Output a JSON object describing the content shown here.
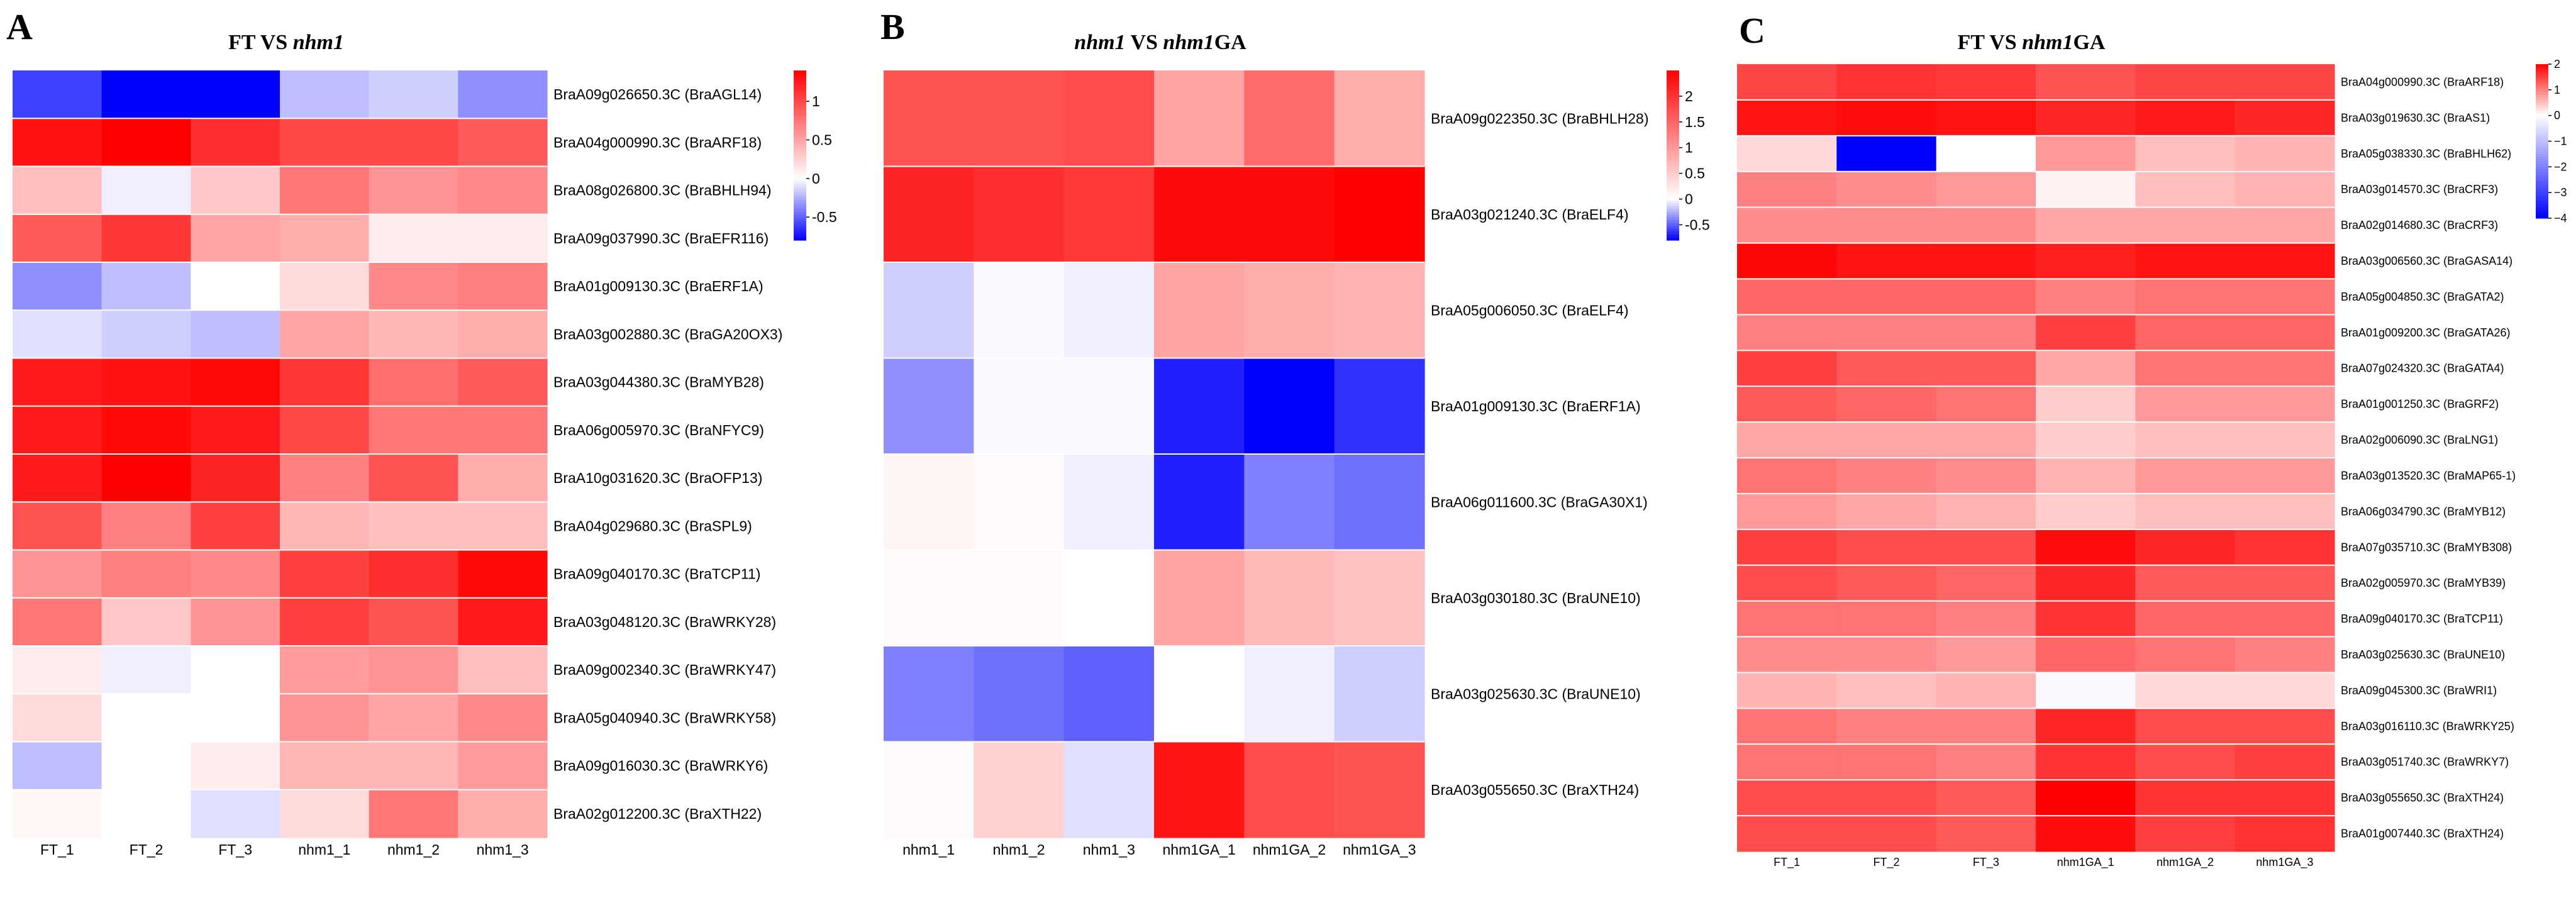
{
  "chart_data": [
    {
      "type": "heatmap",
      "panel_letter": "A",
      "title_prefix": "FT VS ",
      "title_italic": "nhm1",
      "title_suffix": "",
      "columns": [
        "FT_1",
        "FT_2",
        "FT_3",
        "nhm1_1",
        "nhm1_2",
        "nhm1_3"
      ],
      "rows": [
        "BraA09g026650.3C (BraAGL14)",
        "BraA04g000990.3C (BraARF18)",
        "BraA08g026800.3C (BraBHLH94)",
        "BraA09g037990.3C (BraEFR116)",
        "BraA01g009130.3C (BraERF1A)",
        "BraA03g002880.3C (BraGA20OX3)",
        "BraA03g044380.3C (BraMYB28)",
        "BraA06g005970.3C (BraNFYC9)",
        "BraA10g031620.3C (BraOFP13)",
        "BraA04g029680.3C (BraSPL9)",
        "BraA09g040170.3C (BraTCP11)",
        "BraA03g048120.3C (BraWRKY28)",
        "BraA09g002340.3C (BraWRKY47)",
        "BraA05g040940.3C (BraWRKY58)",
        "BraA09g016030.3C (BraWRKY6)",
        "BraA02g012200.3C (BraXTH22)"
      ],
      "values": [
        [
          -0.6,
          -0.8,
          -0.8,
          -0.2,
          -0.15,
          -0.35
        ],
        [
          1.3,
          1.45,
          1.15,
          1.0,
          1.0,
          0.9
        ],
        [
          0.35,
          -0.05,
          0.3,
          0.75,
          0.6,
          0.65
        ],
        [
          0.9,
          1.1,
          0.5,
          0.45,
          0.1,
          0.1
        ],
        [
          -0.35,
          -0.2,
          0.0,
          0.2,
          0.65,
          0.7
        ],
        [
          -0.1,
          -0.15,
          -0.2,
          0.5,
          0.4,
          0.45
        ],
        [
          1.25,
          1.3,
          1.35,
          1.1,
          0.8,
          0.9
        ],
        [
          1.25,
          1.35,
          1.25,
          1.0,
          0.75,
          0.75
        ],
        [
          1.25,
          1.4,
          1.2,
          0.7,
          0.95,
          0.45
        ],
        [
          0.95,
          0.7,
          1.05,
          0.4,
          0.35,
          0.35
        ],
        [
          0.6,
          0.7,
          0.65,
          1.05,
          1.15,
          1.35
        ],
        [
          0.75,
          0.3,
          0.6,
          1.05,
          0.95,
          1.25
        ],
        [
          0.1,
          -0.05,
          0.0,
          0.55,
          0.6,
          0.35
        ],
        [
          0.2,
          0.0,
          0.0,
          0.6,
          0.5,
          0.65
        ],
        [
          -0.2,
          0.0,
          0.1,
          0.4,
          0.4,
          0.55
        ],
        [
          0.05,
          0.0,
          -0.1,
          0.2,
          0.75,
          0.45
        ]
      ],
      "colorbar_ticks": [
        "1",
        "0.5",
        "0",
        "-0.5"
      ],
      "colorbar_tick_values": [
        1,
        0.5,
        0,
        -0.5
      ],
      "vmin": -0.8,
      "vmax": 1.4
    },
    {
      "type": "heatmap",
      "panel_letter": "B",
      "title_prefix": "",
      "title_italic": "nhm1",
      "title_suffix": " VS ",
      "title_italic2": "nhm1",
      "title_suffix2": "GA",
      "columns": [
        "nhm1_1",
        "nhm1_2",
        "nhm1_3",
        "nhm1GA_1",
        "nhm1GA_2",
        "nhm1GA_3"
      ],
      "rows": [
        "BraA09g022350.3C (BraBHLH28)",
        "BraA03g021240.3C (BraELF4)",
        "BraA05g006050.3C (BraELF4)",
        "BraA01g009130.3C (BraERF1A)",
        "BraA06g011600.3C (BraGA30X1)",
        "BraA03g030180.3C (BraUNE10)",
        "BraA03g025630.3C (BraUNE10)",
        "BraA03g055650.3C (BraXTH24)"
      ],
      "values": [
        [
          1.7,
          1.7,
          1.75,
          0.9,
          1.45,
          0.8
        ],
        [
          2.15,
          2.05,
          1.95,
          2.4,
          2.4,
          2.5
        ],
        [
          -0.15,
          -0.02,
          -0.05,
          0.9,
          0.8,
          0.75
        ],
        [
          -0.35,
          -0.02,
          -0.02,
          -0.7,
          -0.8,
          -0.65
        ],
        [
          0.1,
          0.05,
          -0.05,
          -0.7,
          -0.4,
          -0.45
        ],
        [
          0.05,
          0.05,
          0.0,
          0.9,
          0.7,
          0.6
        ],
        [
          -0.4,
          -0.45,
          -0.5,
          0.0,
          -0.05,
          -0.15
        ],
        [
          0.05,
          0.45,
          -0.1,
          2.3,
          1.75,
          1.7
        ]
      ],
      "colorbar_ticks": [
        "2",
        "1.5",
        "1",
        "0.5",
        "0",
        "-0.5"
      ],
      "colorbar_tick_values": [
        2,
        1.5,
        1,
        0.5,
        0,
        -0.5
      ],
      "vmin": -0.8,
      "vmax": 2.5
    },
    {
      "type": "heatmap",
      "panel_letter": "C",
      "title_prefix": "FT VS ",
      "title_italic": "nhm1",
      "title_suffix": "GA",
      "columns": [
        "FT_1",
        "FT_2",
        "FT_3",
        "nhm1GA_1",
        "nhm1GA_2",
        "nhm1GA_3"
      ],
      "rows": [
        "BraA04g000990.3C (BraARF18)",
        "BraA03g019630.3C (BraAS1)",
        "BraA05g038330.3C (BraBHLH62)",
        "BraA03g014570.3C (BraCRF3)",
        "BraA02g014680.3C (BraCRF3)",
        "BraA03g006560.3C (BraGASA14)",
        "BraA05g004850.3C (BraGATA2)",
        "BraA01g009200.3C (BraGATA26)",
        "BraA07g024320.3C (BraGATA4)",
        "BraA01g001250.3C (BraGRF2)",
        "BraA02g006090.3C (BraLNG1)",
        "BraA03g013520.3C (BraMAP65-1)",
        "BraA06g034790.3C (BraMYB12)",
        "BraA07g035710.3C (BraMYB308)",
        "BraA02g005970.3C (BraMYB39)",
        "BraA09g040170.3C (BraTCP11)",
        "BraA03g025630.3C (BraUNE10)",
        "BraA09g045300.3C (BraWRI1)",
        "BraA03g016110.3C (BraWRKY25)",
        "BraA03g051740.3C (BraWRKY7)",
        "BraA03g055650.3C (BraXTH24)",
        "BraA01g007440.3C (BraXTH24)"
      ],
      "values": [
        [
          1.45,
          1.6,
          1.55,
          1.35,
          1.45,
          1.45
        ],
        [
          1.85,
          1.9,
          1.85,
          1.7,
          1.8,
          1.7
        ],
        [
          0.3,
          -4.0,
          0.0,
          0.8,
          0.5,
          0.6
        ],
        [
          1.0,
          0.9,
          0.8,
          0.1,
          0.5,
          0.6
        ],
        [
          0.9,
          0.9,
          0.9,
          0.7,
          0.7,
          0.7
        ],
        [
          1.95,
          1.85,
          1.85,
          1.75,
          1.85,
          1.85
        ],
        [
          1.2,
          1.2,
          1.2,
          1.0,
          1.1,
          1.1
        ],
        [
          1.0,
          1.0,
          1.0,
          1.5,
          1.2,
          1.2
        ],
        [
          1.5,
          1.3,
          1.3,
          0.7,
          1.1,
          1.1
        ],
        [
          1.3,
          1.2,
          1.1,
          0.4,
          0.8,
          0.8
        ],
        [
          0.7,
          0.7,
          0.7,
          0.4,
          0.5,
          0.5
        ],
        [
          1.1,
          1.0,
          0.9,
          0.6,
          0.8,
          0.8
        ],
        [
          0.8,
          0.7,
          0.6,
          0.4,
          0.5,
          0.5
        ],
        [
          1.5,
          1.4,
          1.4,
          1.9,
          1.7,
          1.6
        ],
        [
          1.4,
          1.3,
          1.2,
          1.7,
          1.3,
          1.3
        ],
        [
          1.1,
          1.1,
          1.0,
          1.6,
          1.2,
          1.2
        ],
        [
          0.9,
          0.9,
          0.8,
          1.2,
          1.1,
          1.0
        ],
        [
          0.6,
          0.5,
          0.6,
          -0.1,
          0.3,
          0.3
        ],
        [
          1.1,
          1.0,
          1.0,
          1.7,
          1.4,
          1.4
        ],
        [
          1.1,
          1.1,
          1.0,
          1.6,
          1.4,
          1.5
        ],
        [
          1.4,
          1.4,
          1.3,
          2.0,
          1.6,
          1.6
        ],
        [
          1.4,
          1.4,
          1.3,
          1.9,
          1.5,
          1.6
        ]
      ],
      "colorbar_ticks": [
        "2",
        "1",
        "0",
        "−1",
        "−2",
        "−3",
        "−4"
      ],
      "colorbar_tick_values": [
        2,
        1,
        0,
        -1,
        -2,
        -3,
        -4
      ],
      "vmin": -4,
      "vmax": 2
    }
  ]
}
